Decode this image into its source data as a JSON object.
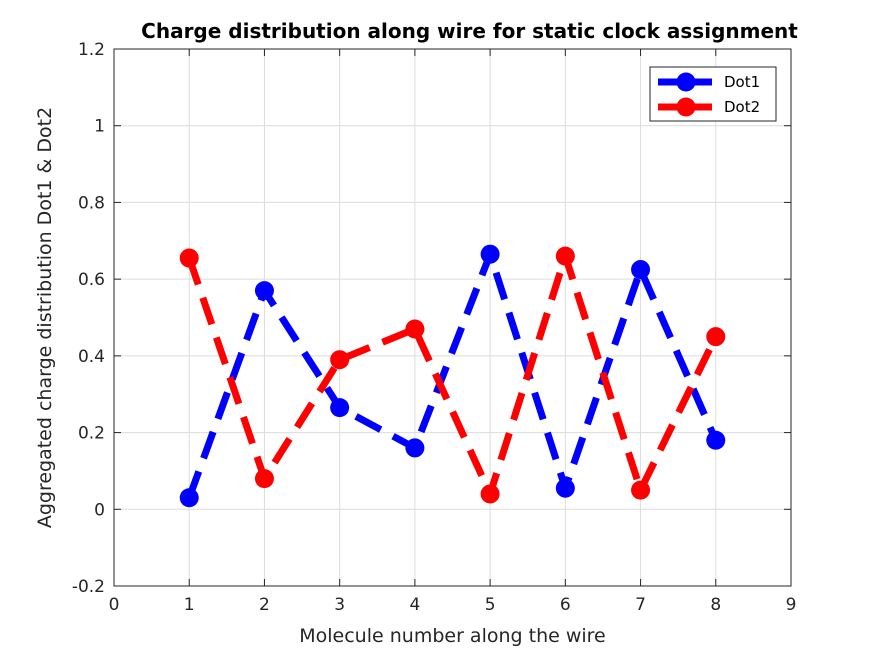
{
  "chart_data": {
    "type": "line",
    "title": "Charge distribution along wire for static clock assignment",
    "xlabel": "Molecule number along the wire",
    "ylabel": "Aggregated charge distribution Dot1 & Dot2",
    "xlim": [
      0,
      9
    ],
    "ylim": [
      -0.2,
      1.2
    ],
    "xticks": [
      "0",
      "1",
      "2",
      "3",
      "4",
      "5",
      "6",
      "7",
      "8",
      "9"
    ],
    "yticks": [
      "-0.2",
      "0",
      "0.2",
      "0.4",
      "0.6",
      "0.8",
      "1",
      "1.2"
    ],
    "grid": true,
    "legend_position": "top-right",
    "x": [
      1,
      2,
      3,
      4,
      5,
      6,
      7,
      8
    ],
    "series": [
      {
        "name": "Dot1",
        "color": "#0000ff",
        "line_style": "dashed",
        "marker": "circle",
        "values": [
          0.03,
          0.57,
          0.265,
          0.16,
          0.665,
          0.055,
          0.625,
          0.18
        ]
      },
      {
        "name": "Dot2",
        "color": "#ff0000",
        "line_style": "dashed",
        "marker": "circle",
        "values": [
          0.655,
          0.08,
          0.39,
          0.47,
          0.04,
          0.66,
          0.05,
          0.45
        ]
      }
    ]
  }
}
